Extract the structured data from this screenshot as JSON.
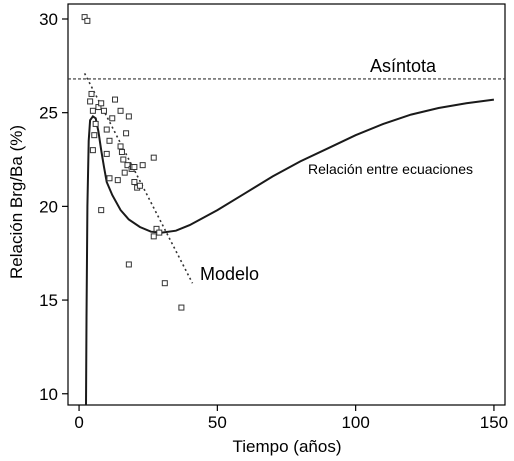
{
  "chart_data": {
    "type": "scatter",
    "xlabel": "Tiempo (años)",
    "ylabel": "Relación Brg/Ba (%)",
    "xlim": [
      -4,
      154
    ],
    "ylim": [
      9.4,
      30.8
    ],
    "xticks": [
      0,
      50,
      100,
      150
    ],
    "yticks": [
      10,
      15,
      20,
      25,
      30
    ],
    "tick_labels_x": [
      "0",
      "50",
      "100",
      "150"
    ],
    "tick_labels_y": [
      "10",
      "15",
      "20",
      "25",
      "30"
    ],
    "grid": false,
    "colors": {
      "line": "#1a1a1a",
      "marker": "#333333"
    },
    "asymptote": {
      "y": 26.8,
      "label": "Asíntota"
    },
    "annotations": {
      "curve_label": "Relación entre ecuaciones",
      "model_label": "Modelo"
    },
    "scatter_points": [
      [
        2,
        30.1
      ],
      [
        3,
        29.9
      ],
      [
        4,
        25.6
      ],
      [
        4.5,
        26.0
      ],
      [
        5,
        25.1
      ],
      [
        5,
        23.0
      ],
      [
        5.5,
        23.8
      ],
      [
        6,
        24.4
      ],
      [
        7,
        25.3
      ],
      [
        8,
        25.5
      ],
      [
        8,
        19.8
      ],
      [
        9,
        25.1
      ],
      [
        10,
        24.1
      ],
      [
        10,
        22.8
      ],
      [
        11,
        21.5
      ],
      [
        11,
        23.5
      ],
      [
        12,
        24.7
      ],
      [
        13,
        25.7
      ],
      [
        14,
        21.4
      ],
      [
        15,
        25.1
      ],
      [
        15,
        23.2
      ],
      [
        15.5,
        22.9
      ],
      [
        16,
        22.5
      ],
      [
        16.5,
        21.8
      ],
      [
        17,
        23.9
      ],
      [
        17.5,
        22.2
      ],
      [
        18,
        24.8
      ],
      [
        18,
        16.9
      ],
      [
        19,
        22.0
      ],
      [
        19.5,
        22.1
      ],
      [
        20,
        21.3
      ],
      [
        20,
        22.1
      ],
      [
        21,
        21.0
      ],
      [
        22,
        21.1
      ],
      [
        23,
        22.2
      ],
      [
        27,
        22.6
      ],
      [
        27,
        18.4
      ],
      [
        28,
        18.8
      ],
      [
        29,
        18.6
      ],
      [
        31,
        15.9
      ],
      [
        37,
        14.6
      ]
    ],
    "series": [
      {
        "kind": "solid-curve",
        "points": [
          [
            2.5,
            9.4
          ],
          [
            2.7,
            14
          ],
          [
            3,
            20
          ],
          [
            3.5,
            23.5
          ],
          [
            4,
            24.6
          ],
          [
            5,
            24.8
          ],
          [
            6,
            24.7
          ],
          [
            7,
            24.0
          ],
          [
            8,
            23.0
          ],
          [
            9,
            22.1
          ],
          [
            10,
            21.3
          ],
          [
            12,
            20.6
          ],
          [
            15,
            19.8
          ],
          [
            18,
            19.3
          ],
          [
            22,
            18.9
          ],
          [
            26,
            18.65
          ],
          [
            30,
            18.6
          ],
          [
            35,
            18.7
          ],
          [
            40,
            19.0
          ],
          [
            50,
            19.8
          ],
          [
            60,
            20.7
          ],
          [
            70,
            21.6
          ],
          [
            80,
            22.4
          ],
          [
            90,
            23.1
          ],
          [
            100,
            23.8
          ],
          [
            110,
            24.4
          ],
          [
            120,
            24.9
          ],
          [
            130,
            25.25
          ],
          [
            140,
            25.5
          ],
          [
            150,
            25.7
          ]
        ]
      },
      {
        "kind": "dotted-model",
        "points": [
          [
            2,
            27.1
          ],
          [
            41,
            15.9
          ]
        ]
      }
    ]
  }
}
